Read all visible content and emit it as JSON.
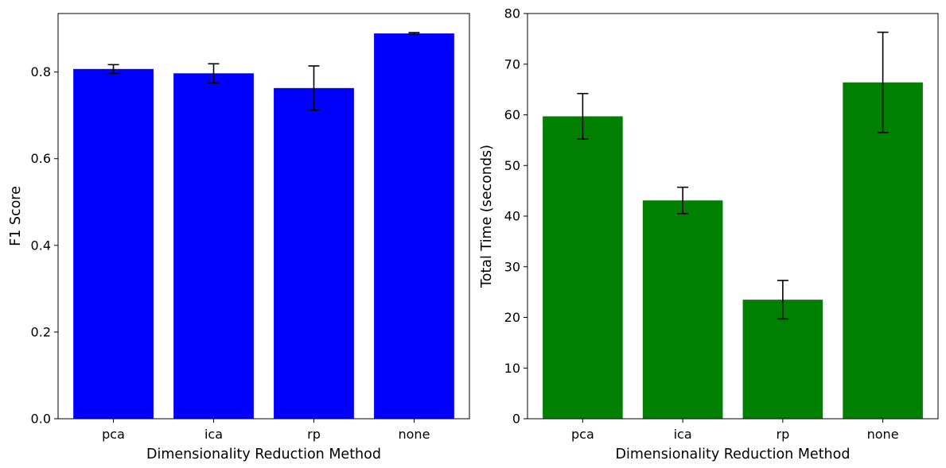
{
  "chart_data": [
    {
      "type": "bar",
      "categories": [
        "pca",
        "ica",
        "rp",
        "none"
      ],
      "values": [
        0.807,
        0.797,
        0.763,
        0.889
      ],
      "errors": [
        0.01,
        0.022,
        0.051,
        0.002
      ],
      "xlabel": "Dimensionality Reduction Method",
      "ylabel": "F1 Score",
      "ylim": [
        0,
        0.935
      ],
      "yticks": [
        0.0,
        0.2,
        0.4,
        0.6,
        0.8
      ],
      "ytick_labels": [
        "0.0",
        "0.2",
        "0.4",
        "0.6",
        "0.8"
      ],
      "bar_color": "#0000ff",
      "error_color": "#000000",
      "grid": false
    },
    {
      "type": "bar",
      "categories": [
        "pca",
        "ica",
        "rp",
        "none"
      ],
      "values": [
        59.7,
        43.1,
        23.5,
        66.4
      ],
      "errors": [
        4.5,
        2.6,
        3.8,
        9.9
      ],
      "xlabel": "Dimensionality Reduction Method",
      "ylabel": "Total Time (seconds)",
      "ylim": [
        0,
        80
      ],
      "yticks": [
        0,
        10,
        20,
        30,
        40,
        50,
        60,
        70,
        80
      ],
      "ytick_labels": [
        "0",
        "10",
        "20",
        "30",
        "40",
        "50",
        "60",
        "70",
        "80"
      ],
      "bar_color": "#008000",
      "error_color": "#000000",
      "grid": false
    }
  ]
}
